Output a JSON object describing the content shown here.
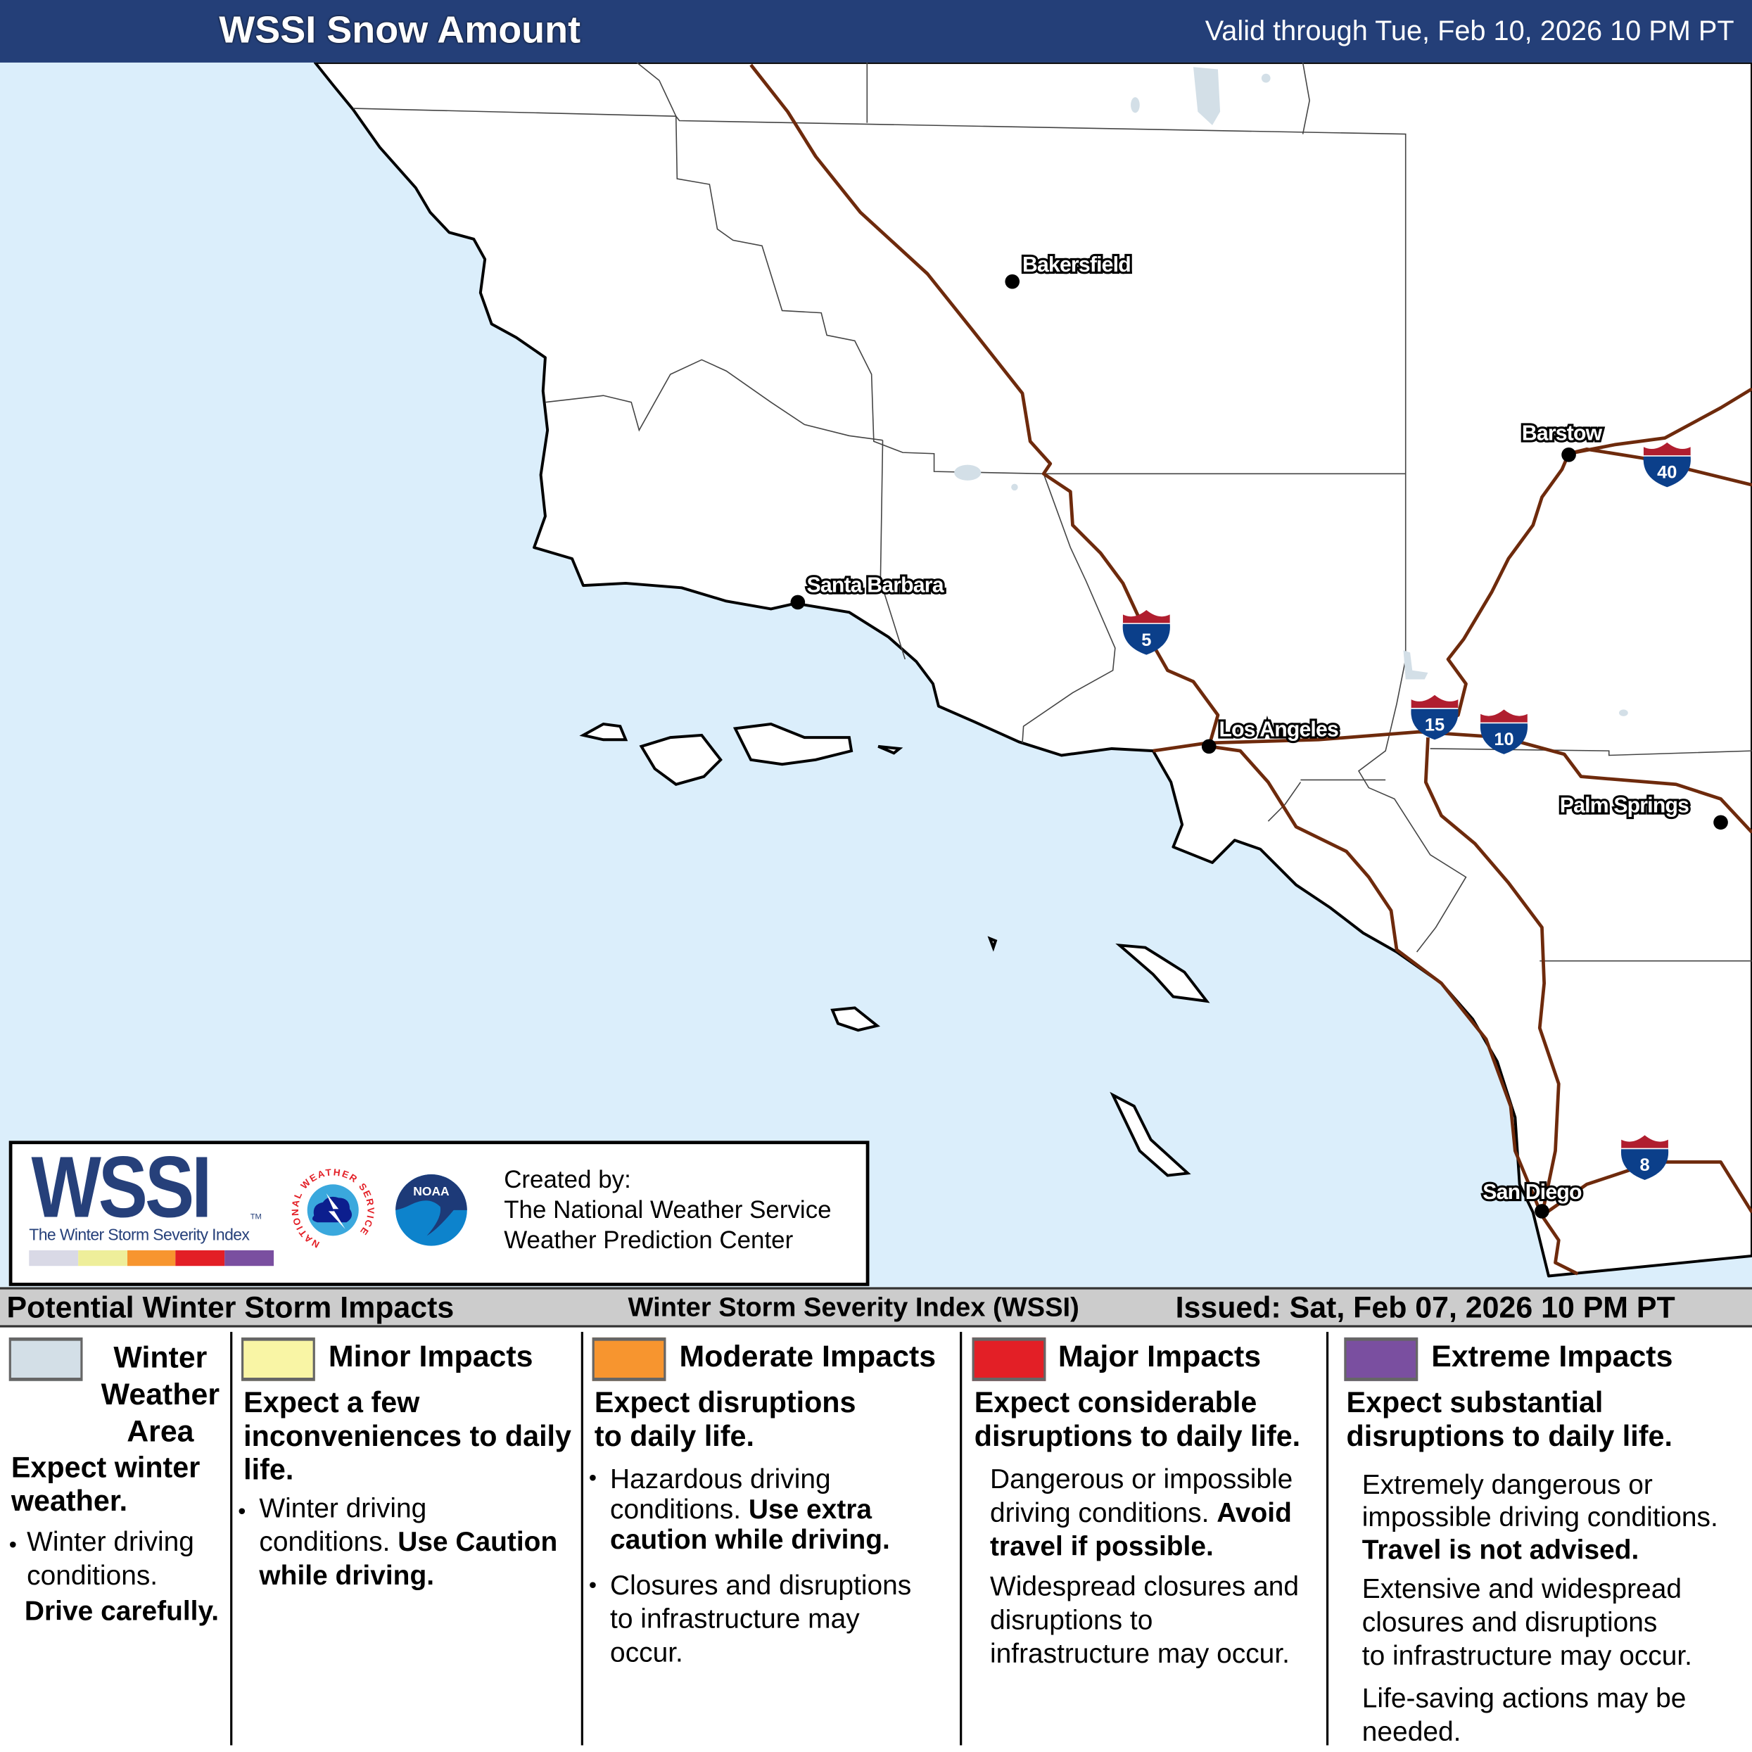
{
  "header": {
    "title": "WSSI Snow Amount",
    "valid": "Valid through Tue, Feb 10, 2026 10 PM PT"
  },
  "colors": {
    "header_bg": "#243f78",
    "ocean": "#dbeefb",
    "land": "#ffffff",
    "highway": "#6e2a0c",
    "winter": "#d3dfe7",
    "minor": "#f9f5a5",
    "moderate": "#f7952f",
    "major": "#e31f26",
    "extreme": "#7a4fa0"
  },
  "map": {
    "cities": [
      {
        "name": "Bakersfield"
      },
      {
        "name": "Santa Barbara"
      },
      {
        "name": "Los Angeles"
      },
      {
        "name": "Barstow"
      },
      {
        "name": "Palm Springs"
      },
      {
        "name": "San Diego"
      }
    ],
    "interstates": [
      "5",
      "15",
      "10",
      "40",
      "8"
    ]
  },
  "logo": {
    "wssi": "WSSI",
    "tm": "TM",
    "subtitle": "The Winter Storm Severity Index",
    "nws": "NATIONAL WEATHER SERVICE",
    "noaa": "NOAA",
    "created": "Created by:\nThe National Weather Service\nWeather Prediction Center"
  },
  "legend": {
    "title": "Potential Winter Storm Impacts",
    "subtitle": "Winter Storm Severity Index (WSSI)",
    "issued": "Issued: Sat, Feb 07, 2026 10 PM PT",
    "winter": {
      "title": "Winter\nWeather\nArea",
      "lead": "Expect winter\nweather.",
      "text": "Winter driving\nconditions.",
      "bold": "Drive carefully."
    },
    "minor": {
      "title": "Minor Impacts",
      "lead": "Expect a few\ninconveniences to daily\nlife.",
      "text": "Winter driving\nconditions. ",
      "bold": "Use Caution\nwhile driving."
    },
    "moderate": {
      "title": "Moderate Impacts",
      "lead": "Expect disruptions\nto daily life.",
      "text": "Hazardous driving\nconditions. ",
      "bold": "Use extra\ncaution while driving.",
      "text2": "Closures and disruptions\nto infrastructure may\noccur."
    },
    "major": {
      "title": "Major Impacts",
      "lead": "Expect considerable\ndisruptions to daily life.",
      "text": "Dangerous or impossible\ndriving conditions. ",
      "bold": "Avoid\ntravel if possible.",
      "text2": "Widespread closures and\ndisruptions to\ninfrastructure may occur."
    },
    "extreme": {
      "title": "Extreme Impacts",
      "lead": "Expect substantial\ndisruptions to daily life.",
      "text": "Extremely dangerous or\nimpossible driving conditions.\n",
      "bold": "Travel is not advised.",
      "text2": "Extensive and widespread\nclosures and disruptions\nto infrastructure may occur.",
      "text3": "Life-saving actions may be\nneeded."
    }
  }
}
